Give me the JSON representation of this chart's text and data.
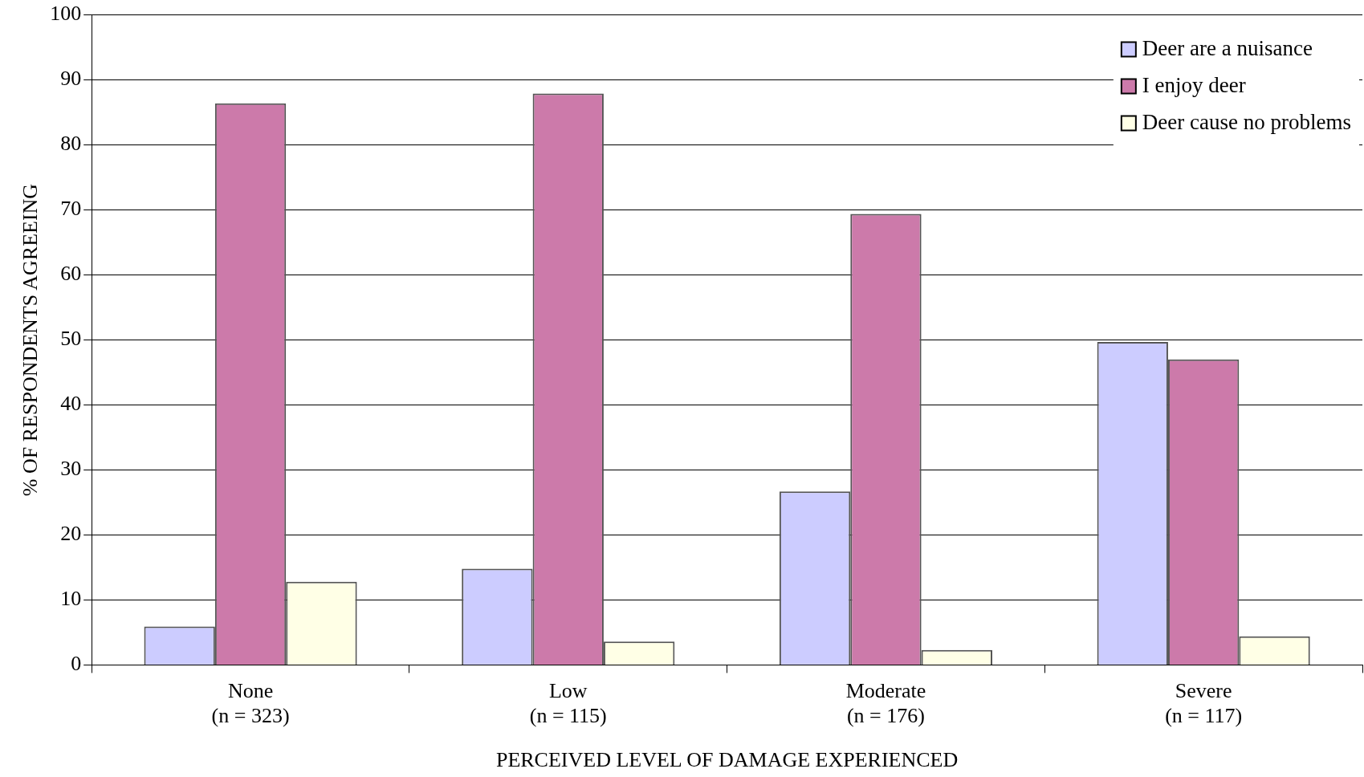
{
  "chart_data": {
    "type": "bar",
    "xlabel": "PERCEIVED LEVEL OF DAMAGE EXPERIENCED",
    "ylabel": "% OF RESPONDENTS AGREEING",
    "categories": [
      "None\n(n = 323)",
      "Low\n(n = 115)",
      "Moderate\n(n = 176)",
      "Severe\n(n = 117)"
    ],
    "series": [
      {
        "name": "Deer are a nuisance",
        "color": "#ccccff",
        "values": [
          5.9,
          14.8,
          26.7,
          49.7
        ]
      },
      {
        "name": "I enjoy deer",
        "color": "#cc7aaa",
        "values": [
          86.4,
          87.9,
          69.4,
          47.0
        ]
      },
      {
        "name": "Deer cause no problems",
        "color": "#ffffe6",
        "values": [
          12.8,
          3.6,
          2.3,
          4.4
        ]
      }
    ],
    "ylim": [
      0,
      100
    ],
    "yticks": [
      0,
      10,
      20,
      30,
      40,
      50,
      60,
      70,
      80,
      90,
      100
    ],
    "grid": "y",
    "legend": "top right"
  }
}
